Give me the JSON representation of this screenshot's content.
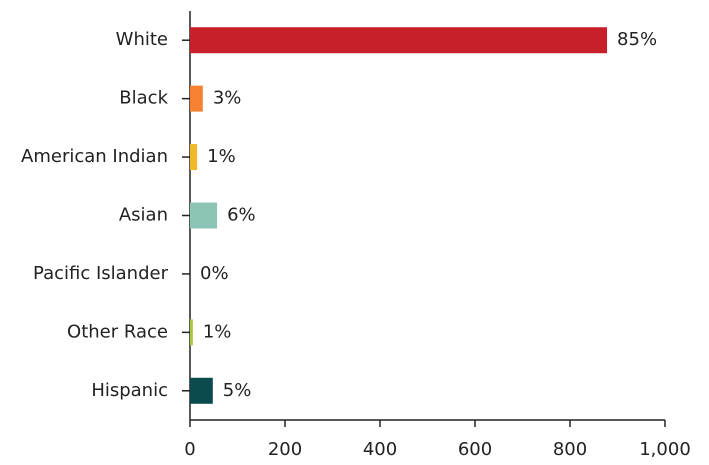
{
  "chart_data": {
    "type": "hbar",
    "categories": [
      "White",
      "Black",
      "American Indian",
      "Asian",
      "Pacific Islander",
      "Other Race",
      "Hispanic"
    ],
    "values": [
      878,
      27,
      15,
      57,
      0,
      6,
      48
    ],
    "value_labels": [
      "85%",
      "3%",
      "1%",
      "6%",
      "0%",
      "1%",
      "5%"
    ],
    "colors": [
      "#c8202a",
      "#f58232",
      "#f0b92a",
      "#8cc5b5",
      "#6b4c9a",
      "#a8c545",
      "#0b4a4f"
    ],
    "xlim": [
      0,
      1000
    ],
    "xticks": [
      0,
      200,
      400,
      600,
      800,
      {
        "value": 1000,
        "label": "1,000"
      }
    ]
  }
}
